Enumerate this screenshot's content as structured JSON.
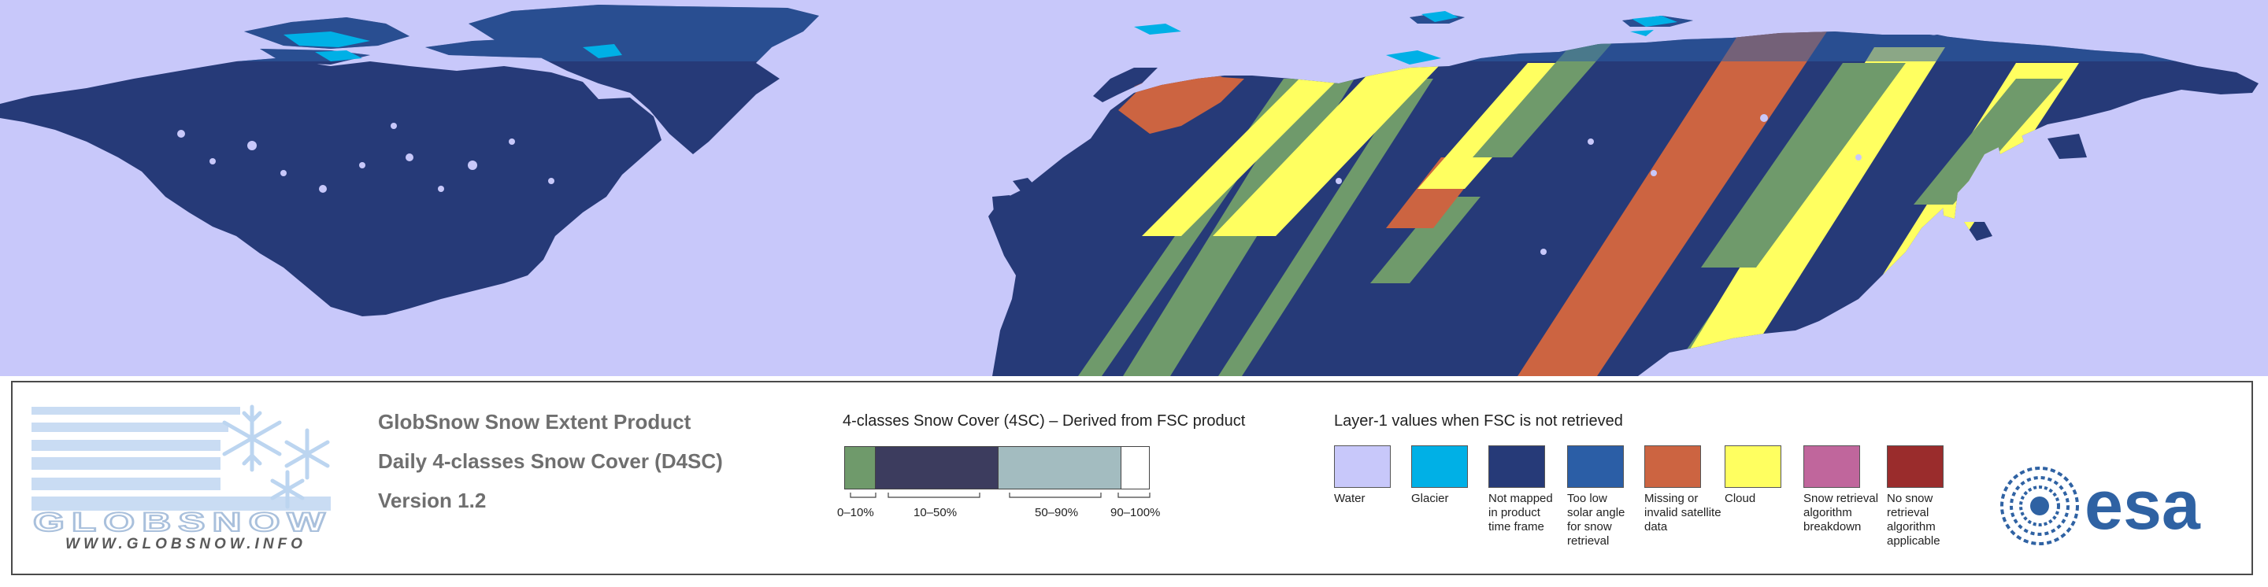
{
  "logo": {
    "wordmark": "GLOBSNOW",
    "url": "WWW.GLOBSNOW.INFO"
  },
  "product": {
    "line1": "GlobSnow Snow Extent Product",
    "line2": "Daily 4-classes Snow Cover (D4SC)",
    "line3": "Version 1.2"
  },
  "snow_cover_legend": {
    "title": "4-classes Snow Cover (4SC) – Derived from FSC product",
    "classes": [
      {
        "label": "0–10%",
        "color": "#6f9a6b"
      },
      {
        "label": "10–50%",
        "color": "#3c3c5e"
      },
      {
        "label": "50–90%",
        "color": "#a3bcc0"
      },
      {
        "label": "90–100%",
        "color": "#ffffff"
      }
    ]
  },
  "layer1_legend": {
    "title": "Layer-1 values when FSC is not retrieved",
    "items": [
      {
        "label": "Water",
        "color": "#c8c8fa"
      },
      {
        "label": "Glacier",
        "color": "#00b0e6"
      },
      {
        "label": "Not mapped in product time frame",
        "color": "#263a78"
      },
      {
        "label": "Too low solar angle for snow retrieval",
        "color": "#2b5ea6"
      },
      {
        "label": "Missing or invalid satellite data",
        "color": "#cc6441"
      },
      {
        "label": "Cloud",
        "color": "#ffff60"
      },
      {
        "label": "Snow retrieval algorithm breakdown",
        "color": "#c0669c"
      },
      {
        "label": "No snow retrieval algorithm applicable",
        "color": "#9a2c2c"
      }
    ]
  },
  "esa_logo": {
    "text": "esa"
  },
  "colors": {
    "ocean": "#c8c8fa",
    "land_not_mapped": "#263a78",
    "polar_blue": "#2b5ea6",
    "glacier": "#00b0e6",
    "missing": "#cc6441",
    "cloud": "#ffff60",
    "snow_low": "#6f9a6b",
    "legend_text": "#6f6f6f",
    "esa_blue": "#2f62a3"
  }
}
